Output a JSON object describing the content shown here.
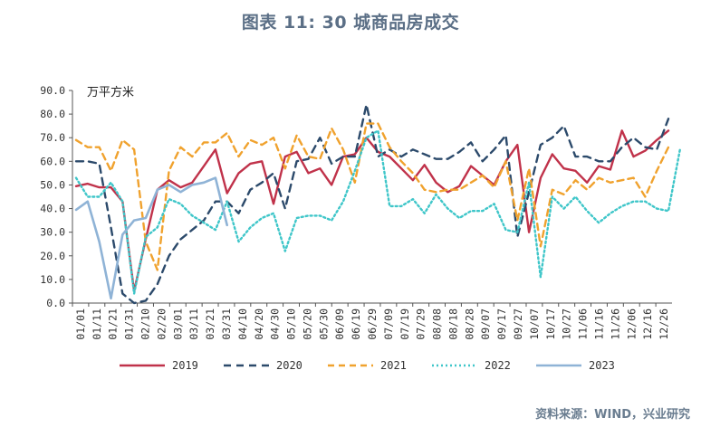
{
  "title": "图表 11: 30 城商品房成交",
  "source": "资料来源：WIND，兴业研究",
  "chart_data": {
    "type": "line",
    "unit_label": "万平方米",
    "ylim": [
      0,
      90
    ],
    "yticks": [
      "90.0",
      "80.0",
      "70.0",
      "60.0",
      "50.0",
      "40.0",
      "30.0",
      "20.0",
      "10.0",
      "0.0"
    ],
    "x_tick_labels": [
      "01/01",
      "01/11",
      "01/21",
      "01/31",
      "02/10",
      "02/20",
      "03/01",
      "03/11",
      "03/21",
      "03/31",
      "04/10",
      "04/20",
      "04/30",
      "05/10",
      "05/20",
      "05/30",
      "06/09",
      "06/19",
      "06/29",
      "07/09",
      "07/19",
      "07/29",
      "08/08",
      "08/18",
      "08/28",
      "09/07",
      "09/17",
      "09/27",
      "10/07",
      "10/17",
      "10/27",
      "11/06",
      "11/16",
      "11/26",
      "12/06",
      "12/16",
      "12/26"
    ],
    "legend_position": "bottom",
    "series": [
      {
        "name": "2019",
        "color": "#c0324a",
        "dash": "solid",
        "values": [
          49.5,
          50.5,
          49,
          49,
          43,
          5,
          27,
          48,
          52,
          49,
          51,
          58,
          65,
          46.5,
          55,
          59,
          60,
          42,
          62,
          64,
          55,
          57,
          50,
          62,
          63,
          70,
          64,
          62,
          57,
          52,
          58.5,
          51,
          47,
          49.5,
          58,
          54,
          50,
          60,
          67,
          30,
          53,
          63,
          57,
          56,
          51,
          58,
          56.5,
          73,
          62,
          64.5,
          69,
          73
        ]
      },
      {
        "name": "2020",
        "color": "#2c4a6b",
        "dash": "8,6",
        "values": [
          60,
          60,
          59,
          32,
          4,
          0,
          1,
          8,
          20,
          27,
          31,
          35,
          43,
          43,
          38,
          48,
          51,
          55,
          40,
          60,
          61,
          70,
          59,
          62,
          62,
          84,
          62,
          65,
          62,
          65,
          63,
          61,
          61,
          64,
          68,
          60,
          65,
          71,
          28,
          47,
          67,
          70,
          75,
          62,
          62,
          60,
          60,
          66,
          70,
          66,
          65,
          78
        ]
      },
      {
        "name": "2021",
        "color": "#f0a22e",
        "dash": "7,5",
        "values": [
          69,
          66,
          66,
          56,
          69,
          65,
          26,
          14,
          56,
          66,
          62,
          68,
          68,
          72,
          62,
          69,
          67,
          70,
          57,
          71,
          62,
          61,
          74,
          65,
          51,
          76,
          76,
          66,
          60,
          55,
          48,
          47,
          48,
          48,
          51,
          54,
          49,
          60,
          35,
          57,
          24,
          48,
          46,
          52,
          48,
          53,
          51,
          52,
          53,
          45,
          56,
          66
        ]
      },
      {
        "name": "2022",
        "color": "#3fc6c9",
        "dash": "2,3",
        "values": [
          53,
          45,
          45,
          51,
          43,
          4,
          28,
          32,
          44,
          42,
          37,
          34,
          31,
          43,
          26,
          32,
          36,
          38,
          22,
          36,
          37,
          37,
          35,
          43,
          56,
          70,
          73,
          41,
          41,
          44,
          38,
          46,
          40,
          36,
          39,
          39,
          42,
          31,
          30,
          51,
          11,
          45,
          40,
          45,
          39,
          34,
          38,
          41,
          43,
          43,
          40,
          39,
          65
        ]
      },
      {
        "name": "2023",
        "color": "#8fb3d6",
        "dash": "solid",
        "values": [
          39.5,
          43,
          26,
          2,
          29,
          35,
          36,
          48,
          50,
          47,
          50,
          51,
          53,
          33
        ]
      }
    ]
  }
}
